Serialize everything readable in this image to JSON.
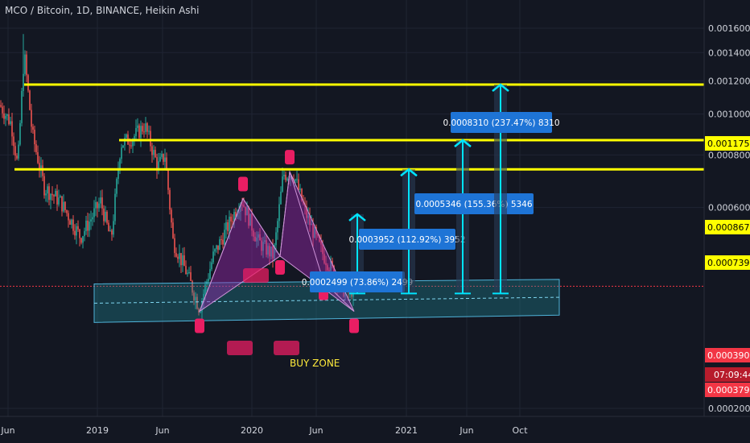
{
  "header": {
    "title": "MCO / Bitcoin, 1D, BINANCE, Heikin Ashi"
  },
  "colors": {
    "background": "#131722",
    "grid": "#1f2433",
    "candle_up": "#26a69a",
    "candle_down": "#ef5350",
    "level_line": "#ffff00",
    "arrow": "#00e5ff",
    "pattern_fill": "#9c27b0",
    "pattern_point": "#e91e63",
    "buy_zone": "#1f8a99",
    "label_bg": "#1e74d6",
    "price_red": "#f23645",
    "text": "#d1d4dc"
  },
  "chart_data": {
    "type": "candlestick",
    "title": "MCO / Bitcoin, 1D, BINANCE, Heikin Ashi",
    "y_axis": {
      "ticks": [
        "0.0016000",
        "0.0014000",
        "0.0010000",
        "0.0008000",
        "0.0006000",
        "0.0002000"
      ],
      "tick_values": [
        0.0016,
        0.0014,
        0.001,
        0.0008,
        0.0006,
        0.0002
      ],
      "partially_hidden_tick": "0.0012000",
      "scale": "log"
    },
    "x_axis": {
      "ticks": [
        "Jun",
        "2019",
        "Jun",
        "2020",
        "Jun",
        "2021",
        "Jun",
        "Oct"
      ]
    },
    "price_labels": [
      {
        "value": "0.0011752",
        "style": "level"
      },
      {
        "value": "0.0008672",
        "style": "level"
      },
      {
        "value": "0.0007393",
        "style": "level"
      },
      {
        "value": "0.0003900",
        "style": "current"
      },
      {
        "value": "07:09:44",
        "style": "countdown"
      },
      {
        "value": "0.0003792",
        "style": "current"
      }
    ],
    "horizontal_levels": [
      0.0011752,
      0.0008672,
      0.0007393
    ],
    "current_price": 0.00039,
    "targets": [
      {
        "label": "0.0002499 (73.86%) 2499",
        "from": 0.000375,
        "to": 0.0005785
      },
      {
        "label": "0.0003952 (112.92%) 3952",
        "from": 0.000375,
        "to": 0.0007393
      },
      {
        "label": "0.0005346 (155.36%) 5346",
        "from": 0.000375,
        "to": 0.0008672
      },
      {
        "label": "0.0008310 (237.47%) 8310",
        "from": 0.000375,
        "to": 0.0011752
      }
    ],
    "annotations": [
      {
        "text": "BUY ZONE"
      }
    ],
    "harmonic_pattern_prices": [
      0.00034,
      0.00063,
      0.00046,
      0.00073,
      0.0004,
      0.00034
    ]
  }
}
